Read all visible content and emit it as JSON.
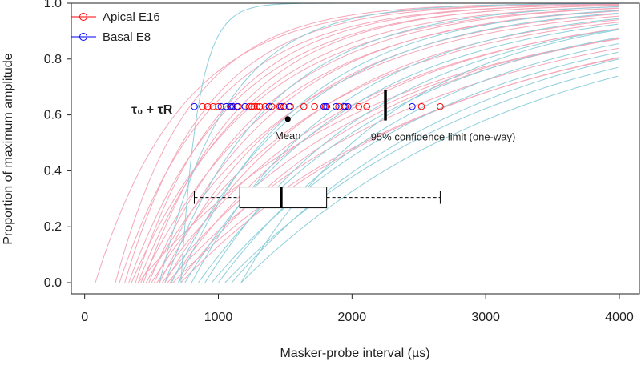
{
  "chart_data": {
    "type": "line",
    "title": "",
    "xlabel": "Masker-probe interval (µs)",
    "ylabel": "Proportion of maximum amplitude",
    "xlim": [
      -100,
      4150
    ],
    "ylim": [
      -0.04,
      1.0
    ],
    "xticks": [
      0,
      1000,
      2000,
      3000,
      4000
    ],
    "xtick_labels": [
      "0",
      "1000",
      "2000",
      "3000",
      "4000"
    ],
    "yticks": [
      0.0,
      0.2,
      0.4,
      0.6,
      0.8,
      1.0
    ],
    "ytick_labels": [
      "0.0",
      "0.2",
      "0.4",
      "0.6",
      "0.8",
      "1.0"
    ],
    "legend": {
      "position": "top-left",
      "entries": [
        {
          "label": "Apical E16",
          "color": "#ff0000"
        },
        {
          "label": "Basal E8",
          "color": "#0000ff"
        }
      ]
    },
    "series_colors": {
      "apical_curve": "#f4a7b9",
      "basal_curve": "#8ecfdc"
    },
    "recovery_curves": {
      "model": "y = 1 - exp(-(x - t0)/tauR), clipped to [0,1]",
      "apical_e16": [
        {
          "t0": 80,
          "tau": 650
        },
        {
          "t0": 230,
          "tau": 560
        },
        {
          "t0": 260,
          "tau": 700
        },
        {
          "t0": 300,
          "tau": 620
        },
        {
          "t0": 330,
          "tau": 760
        },
        {
          "t0": 350,
          "tau": 900
        },
        {
          "t0": 380,
          "tau": 680
        },
        {
          "t0": 400,
          "tau": 820
        },
        {
          "t0": 420,
          "tau": 1000
        },
        {
          "t0": 440,
          "tau": 730
        },
        {
          "t0": 460,
          "tau": 1150
        },
        {
          "t0": 480,
          "tau": 880
        },
        {
          "t0": 500,
          "tau": 1300
        },
        {
          "t0": 520,
          "tau": 950
        },
        {
          "t0": 540,
          "tau": 1450
        },
        {
          "t0": 560,
          "tau": 1050
        },
        {
          "t0": 580,
          "tau": 1650
        },
        {
          "t0": 600,
          "tau": 1200
        },
        {
          "t0": 620,
          "tau": 1850
        },
        {
          "t0": 640,
          "tau": 1400
        },
        {
          "t0": 660,
          "tau": 2050
        },
        {
          "t0": 700,
          "tau": 1600
        },
        {
          "t0": 720,
          "tau": 2000
        },
        {
          "t0": 400,
          "tau": 1750
        }
      ],
      "basal_e8": [
        {
          "t0": 720,
          "tau": 130
        },
        {
          "t0": 560,
          "tau": 500
        },
        {
          "t0": 600,
          "tau": 780
        },
        {
          "t0": 650,
          "tau": 1000
        },
        {
          "t0": 700,
          "tau": 900
        },
        {
          "t0": 750,
          "tau": 1250
        },
        {
          "t0": 800,
          "tau": 1100
        },
        {
          "t0": 850,
          "tau": 1500
        },
        {
          "t0": 900,
          "tau": 1300
        },
        {
          "t0": 950,
          "tau": 1750
        },
        {
          "t0": 1000,
          "tau": 1550
        },
        {
          "t0": 1050,
          "tau": 2000
        },
        {
          "t0": 1100,
          "tau": 1800
        },
        {
          "t0": 1170,
          "tau": 1200
        },
        {
          "t0": 1170,
          "tau": 2100
        }
      ]
    },
    "tau_points": {
      "label": "τ₀ + τR",
      "y": 0.63,
      "apical_e16": [
        880,
        920,
        960,
        1000,
        1060,
        1100,
        1150,
        1230,
        1250,
        1270,
        1290,
        1310,
        1350,
        1400,
        1460,
        1490,
        1540,
        1640,
        1720,
        1800,
        1900,
        1950,
        2050,
        2110,
        2520,
        2660
      ],
      "basal_e8": [
        820,
        1020,
        1060,
        1090,
        1110,
        1140,
        1200,
        1380,
        1470,
        1530,
        1790,
        1810,
        1880,
        1940,
        1970,
        2450
      ]
    },
    "mean": {
      "label": "Mean",
      "x": 1520,
      "y": 0.585
    },
    "confidence_limit": {
      "label": "95% confidence limit (one-way)",
      "x": 2250,
      "y_range": [
        0.58,
        0.69
      ]
    },
    "boxplot": {
      "y": 0.305,
      "whisker_low": 820,
      "q1": 1160,
      "median": 1470,
      "q3": 1810,
      "whisker_high": 2660
    }
  }
}
